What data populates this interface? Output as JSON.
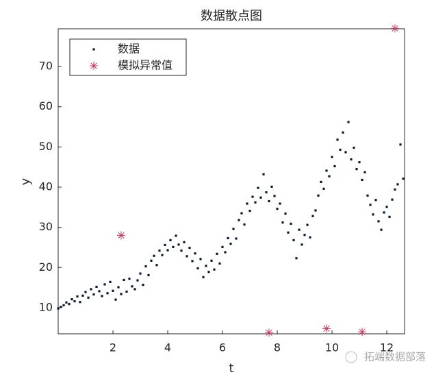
{
  "chart_data": {
    "type": "scatter",
    "title": "数据散点图",
    "x_label": "t",
    "y_label": "y",
    "xlim": [
      0,
      12.65
    ],
    "ylim": [
      3.5,
      79.4
    ],
    "xticks": [
      2,
      4,
      6,
      8,
      10,
      12
    ],
    "yticks": [
      10,
      20,
      30,
      40,
      50,
      60,
      70
    ],
    "legend": "upper left",
    "box": true,
    "series": [
      {
        "name": "数据",
        "color": "#0b1a2a",
        "marker": "dot",
        "x": [
          0.0,
          0.1,
          0.2,
          0.3,
          0.4,
          0.5,
          0.6,
          0.7,
          0.8,
          0.9,
          1.0,
          1.1,
          1.2,
          1.3,
          1.4,
          1.5,
          1.6,
          1.7,
          1.8,
          1.9,
          2.0,
          2.1,
          2.2,
          2.3,
          2.4,
          2.5,
          2.6,
          2.7,
          2.8,
          2.9,
          3.0,
          3.1,
          3.2,
          3.3,
          3.4,
          3.5,
          3.6,
          3.7,
          3.8,
          3.9,
          4.0,
          4.1,
          4.2,
          4.3,
          4.4,
          4.5,
          4.6,
          4.7,
          4.8,
          4.9,
          5.0,
          5.1,
          5.2,
          5.3,
          5.4,
          5.5,
          5.6,
          5.7,
          5.8,
          5.9,
          6.0,
          6.1,
          6.2,
          6.3,
          6.4,
          6.5,
          6.6,
          6.7,
          6.8,
          6.9,
          7.0,
          7.1,
          7.2,
          7.3,
          7.4,
          7.5,
          7.6,
          7.7,
          7.8,
          7.9,
          8.0,
          8.1,
          8.2,
          8.3,
          8.4,
          8.5,
          8.6,
          8.7,
          8.8,
          8.9,
          9.0,
          9.1,
          9.2,
          9.3,
          9.4,
          9.5,
          9.6,
          9.7,
          9.8,
          9.9,
          10.0,
          10.1,
          10.2,
          10.3,
          10.4,
          10.5,
          10.6,
          10.7,
          10.8,
          10.9,
          11.0,
          11.1,
          11.2,
          11.3,
          11.4,
          11.5,
          11.6,
          11.7,
          11.8,
          11.9,
          12.0,
          12.1,
          12.2,
          12.3,
          12.4,
          12.5,
          12.6
        ],
        "values": [
          9.8,
          10.2,
          10.6,
          11.3,
          10.9,
          12.1,
          11.6,
          12.8,
          11.4,
          13.0,
          13.9,
          12.5,
          14.6,
          13.3,
          15.2,
          14.1,
          12.9,
          15.8,
          13.6,
          16.4,
          14.2,
          12.0,
          15.1,
          13.4,
          16.9,
          14.0,
          17.2,
          15.3,
          14.6,
          16.8,
          18.5,
          15.7,
          20.3,
          18.1,
          21.7,
          22.9,
          20.6,
          24.2,
          23.1,
          25.6,
          24.3,
          26.8,
          25.1,
          27.9,
          25.7,
          24.2,
          26.3,
          22.8,
          24.9,
          21.6,
          23.5,
          19.8,
          22.1,
          17.6,
          20.4,
          18.9,
          21.7,
          19.5,
          23.4,
          21.0,
          25.1,
          23.8,
          27.3,
          25.9,
          29.6,
          27.2,
          31.8,
          33.5,
          30.7,
          35.9,
          34.1,
          37.6,
          36.2,
          39.8,
          37.4,
          43.2,
          38.7,
          36.5,
          40.1,
          37.8,
          34.6,
          35.9,
          31.2,
          33.4,
          28.7,
          30.9,
          26.8,
          22.3,
          29.4,
          25.7,
          28.1,
          30.6,
          27.5,
          32.8,
          34.2,
          37.9,
          41.3,
          39.6,
          44.1,
          42.7,
          47.5,
          45.2,
          51.8,
          49.3,
          53.6,
          48.7,
          56.2,
          46.9,
          49.8,
          44.5,
          46.2,
          41.8,
          43.7,
          37.9,
          35.6,
          33.2,
          36.8,
          31.5,
          29.4,
          33.7,
          35.1,
          32.6,
          36.9,
          39.4,
          40.7,
          50.6,
          42.1
        ]
      },
      {
        "name": "模拟异常值",
        "color": "#c0395a",
        "marker": "star",
        "x": [
          2.3,
          7.7,
          9.8,
          11.1,
          12.3
        ],
        "values": [
          28,
          3.8,
          4.8,
          4.0,
          79.5
        ]
      }
    ]
  },
  "watermark": "拓端数据部落"
}
